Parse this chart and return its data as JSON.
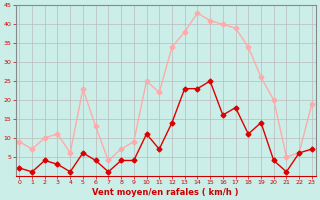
{
  "xlabel": "Vent moyen/en rafales ( km/h )",
  "x": [
    0,
    1,
    2,
    3,
    4,
    5,
    6,
    7,
    8,
    9,
    10,
    11,
    12,
    13,
    14,
    15,
    16,
    17,
    18,
    19,
    20,
    21,
    22,
    23
  ],
  "wind_avg": [
    2,
    1,
    4,
    3,
    1,
    6,
    4,
    1,
    4,
    4,
    11,
    7,
    14,
    23,
    23,
    25,
    16,
    18,
    11,
    14,
    4,
    1,
    6,
    7
  ],
  "wind_gust": [
    9,
    7,
    10,
    11,
    6,
    23,
    13,
    4,
    7,
    9,
    25,
    22,
    34,
    38,
    43,
    41,
    40,
    39,
    34,
    26,
    20,
    5,
    6,
    19
  ],
  "avg_color": "#dd0000",
  "gust_color": "#ffaaaa",
  "bg_color": "#cceee8",
  "grid_color": "#bbbbbb",
  "axis_color": "#cc0000",
  "spine_color": "#888888",
  "ylim": [
    0,
    45
  ],
  "yticks": [
    5,
    10,
    15,
    20,
    25,
    30,
    35,
    40,
    45
  ],
  "ytick_labels": [
    "5",
    "10",
    "15",
    "20",
    "25",
    "30",
    "35",
    "40",
    "45"
  ],
  "xticks": [
    0,
    1,
    2,
    3,
    4,
    5,
    6,
    7,
    8,
    9,
    10,
    11,
    12,
    13,
    14,
    15,
    16,
    17,
    18,
    19,
    20,
    21,
    22,
    23
  ],
  "marker": "D",
  "markersize": 2.5,
  "linewidth": 1.0
}
